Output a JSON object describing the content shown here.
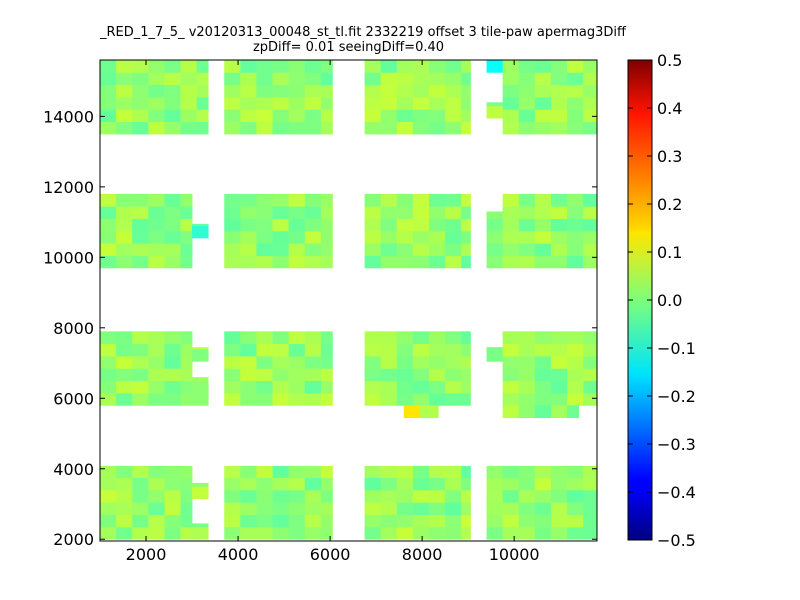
{
  "chart_data": {
    "type": "heatmap",
    "title_line1": "_RED_1_7_5_ v20120313_00048_st_tl.fit 2332219 offset 3 tile-paw apermag3Diff",
    "title_line2": "zpDiff= 0.01 seeingDiff=0.40",
    "xlim": [
      1000,
      11800
    ],
    "ylim": [
      1950,
      15600
    ],
    "x_ticks": [
      2000,
      4000,
      6000,
      8000,
      10000
    ],
    "y_ticks": [
      2000,
      4000,
      6000,
      8000,
      10000,
      12000,
      14000
    ],
    "colorbar": {
      "colormap": "jet",
      "vmin": -0.5,
      "vmax": 0.5,
      "ticks": [
        0.5,
        0.4,
        0.3,
        0.2,
        0.1,
        0.0,
        -0.1,
        -0.2,
        -0.3,
        -0.4,
        -0.5
      ],
      "tick_labels": [
        "0.5",
        "0.4",
        "0.3",
        "0.2",
        "0.1",
        "0.0",
        "−0.1",
        "−0.2",
        "−0.3",
        "−0.4",
        "−0.5"
      ]
    },
    "tiles": [
      {
        "x0": 1000,
        "x1": 3000,
        "y0": 2000,
        "y1": 4080
      },
      {
        "x0": 3000,
        "x1": 3350,
        "y0": 3150,
        "y1": 3600
      },
      {
        "x0": 3000,
        "x1": 3350,
        "y0": 2000,
        "y1": 2450
      },
      {
        "x0": 3700,
        "x1": 6050,
        "y0": 2000,
        "y1": 4080
      },
      {
        "x0": 6750,
        "x1": 9050,
        "y0": 2000,
        "y1": 4080
      },
      {
        "x0": 9400,
        "x1": 9750,
        "y0": 2000,
        "y1": 4080
      },
      {
        "x0": 9750,
        "x1": 11800,
        "y0": 2000,
        "y1": 4080
      },
      {
        "x0": 1000,
        "x1": 3000,
        "y0": 5800,
        "y1": 7900
      },
      {
        "x0": 3000,
        "x1": 3350,
        "y0": 5800,
        "y1": 6600
      },
      {
        "x0": 3000,
        "x1": 3350,
        "y0": 7050,
        "y1": 7450
      },
      {
        "x0": 3700,
        "x1": 6050,
        "y0": 5800,
        "y1": 7900
      },
      {
        "x0": 6750,
        "x1": 9050,
        "y0": 5800,
        "y1": 7900
      },
      {
        "x0": 7600,
        "x1": 7950,
        "y0": 5450,
        "y1": 5800
      },
      {
        "x0": 7950,
        "x1": 8350,
        "y0": 5450,
        "y1": 5800
      },
      {
        "x0": 9400,
        "x1": 9750,
        "y0": 7050,
        "y1": 7450
      },
      {
        "x0": 9750,
        "x1": 11800,
        "y0": 5800,
        "y1": 7900
      },
      {
        "x0": 9750,
        "x1": 11400,
        "y0": 5450,
        "y1": 5800
      },
      {
        "x0": 1000,
        "x1": 3000,
        "y0": 9700,
        "y1": 11800
      },
      {
        "x0": 3000,
        "x1": 3350,
        "y0": 10550,
        "y1": 10950
      },
      {
        "x0": 3700,
        "x1": 6050,
        "y0": 9700,
        "y1": 11800
      },
      {
        "x0": 6750,
        "x1": 9050,
        "y0": 9700,
        "y1": 11800
      },
      {
        "x0": 9400,
        "x1": 9750,
        "y0": 9700,
        "y1": 11300
      },
      {
        "x0": 9750,
        "x1": 11800,
        "y0": 9700,
        "y1": 11800
      },
      {
        "x0": 1000,
        "x1": 3350,
        "y0": 13500,
        "y1": 15600
      },
      {
        "x0": 3700,
        "x1": 6050,
        "y0": 13500,
        "y1": 15600
      },
      {
        "x0": 6750,
        "x1": 9050,
        "y0": 13500,
        "y1": 15600
      },
      {
        "x0": 9400,
        "x1": 9750,
        "y0": 15250,
        "y1": 15600
      },
      {
        "x0": 9400,
        "x1": 9750,
        "y0": 13950,
        "y1": 14400
      },
      {
        "x0": 9750,
        "x1": 11800,
        "y0": 13500,
        "y1": 15600
      }
    ],
    "highlight_cells": [
      {
        "x": 7600,
        "y": 5450,
        "value": 0.15
      },
      {
        "x": 9400,
        "y": 15250,
        "value": -0.12
      },
      {
        "x": 1000,
        "y": 6600,
        "value": -0.07
      },
      {
        "x": 3000,
        "y": 10550,
        "value": -0.08
      }
    ]
  }
}
